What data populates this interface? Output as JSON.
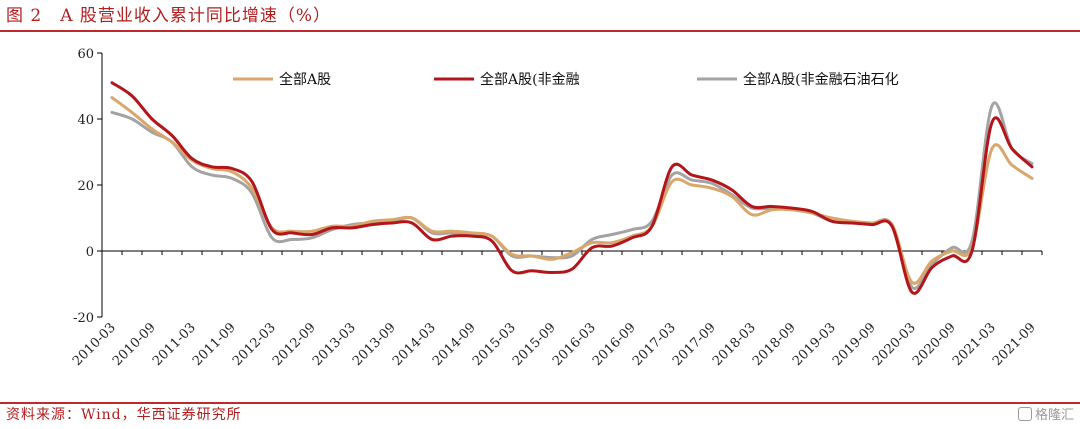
{
  "header": {
    "title": "图 2　A 股营业收入累计同比增速（%）"
  },
  "footer": {
    "source": "资料来源：Wind，华西证券研究所",
    "watermark": "格隆汇"
  },
  "colors": {
    "brand_red": "#c0282b",
    "series_all": "#d9a66b",
    "series_nonfin": "#b3151b",
    "series_nonfin_nonpetro": "#a3a3a3"
  },
  "chart_data": {
    "type": "line",
    "title": "A 股营业收入累计同比增速（%）",
    "xlabel": "",
    "ylabel": "",
    "ylim": [
      -20,
      60
    ],
    "yticks": [
      -20,
      0,
      20,
      40,
      60
    ],
    "grid": false,
    "legend_position": "top",
    "categories": [
      "2010-03",
      "2010-06",
      "2010-09",
      "2010-12",
      "2011-03",
      "2011-06",
      "2011-09",
      "2011-12",
      "2012-03",
      "2012-06",
      "2012-09",
      "2012-12",
      "2013-03",
      "2013-06",
      "2013-09",
      "2013-12",
      "2014-03",
      "2014-06",
      "2014-09",
      "2014-12",
      "2015-03",
      "2015-06",
      "2015-09",
      "2015-12",
      "2016-03",
      "2016-06",
      "2016-09",
      "2016-12",
      "2017-03",
      "2017-06",
      "2017-09",
      "2017-12",
      "2018-03",
      "2018-06",
      "2018-09",
      "2018-12",
      "2019-03",
      "2019-06",
      "2019-09",
      "2019-12",
      "2020-03",
      "2020-06",
      "2020-09",
      "2020-12",
      "2021-03",
      "2021-06",
      "2021-09"
    ],
    "tick_labels": [
      "2010-03",
      "2010-09",
      "2011-03",
      "2011-09",
      "2012-03",
      "2012-09",
      "2013-03",
      "2013-09",
      "2014-03",
      "2014-09",
      "2015-03",
      "2015-09",
      "2016-03",
      "2016-09",
      "2017-03",
      "2017-09",
      "2018-03",
      "2018-09",
      "2019-03",
      "2019-09",
      "2020-03",
      "2020-09",
      "2021-03",
      "2021-09"
    ],
    "series": [
      {
        "name": "全部A股",
        "color": "#d9a66b",
        "values": [
          46.5,
          42,
          37,
          33,
          27.5,
          25,
          24,
          19,
          7,
          6,
          6,
          7.5,
          7.5,
          9,
          9.5,
          10,
          6,
          6,
          5.5,
          4.5,
          -1,
          -1.5,
          -2.5,
          -0.5,
          2.5,
          2.5,
          4.5,
          7.5,
          21,
          20,
          19,
          16.5,
          11,
          12.5,
          12.5,
          11.5,
          10,
          9,
          8.5,
          8,
          -9.5,
          -3,
          0,
          1,
          31,
          26,
          22
        ]
      },
      {
        "name": "全部A股(非金融",
        "color": "#b3151b",
        "values": [
          51,
          47,
          40,
          35,
          28,
          25.5,
          25,
          21,
          6.5,
          5.5,
          5,
          7,
          7,
          8,
          8.5,
          8.5,
          3.5,
          4.5,
          4.5,
          3,
          -6,
          -6,
          -6.5,
          -5.5,
          1,
          1.5,
          4,
          7.5,
          25.5,
          23,
          21.5,
          18.5,
          13.5,
          13.5,
          13,
          12,
          9,
          8.5,
          8,
          7.5,
          -12.5,
          -5,
          -1.5,
          0,
          39,
          31,
          25.5
        ]
      },
      {
        "name": "全部A股(非金融石油石化",
        "color": "#a3a3a3",
        "values": [
          42,
          40,
          36,
          33,
          25.5,
          23,
          22,
          17.5,
          4,
          3.5,
          4,
          6.5,
          8,
          8.5,
          9,
          10,
          5.5,
          5.5,
          5,
          4.5,
          -1.5,
          -1.5,
          -2,
          -1.5,
          3.5,
          5,
          6.5,
          9,
          23,
          21.5,
          20.5,
          17,
          13,
          13,
          12.5,
          11.5,
          9,
          8.5,
          8.5,
          8,
          -11,
          -4,
          1,
          3,
          44,
          31,
          26.5
        ]
      }
    ]
  }
}
